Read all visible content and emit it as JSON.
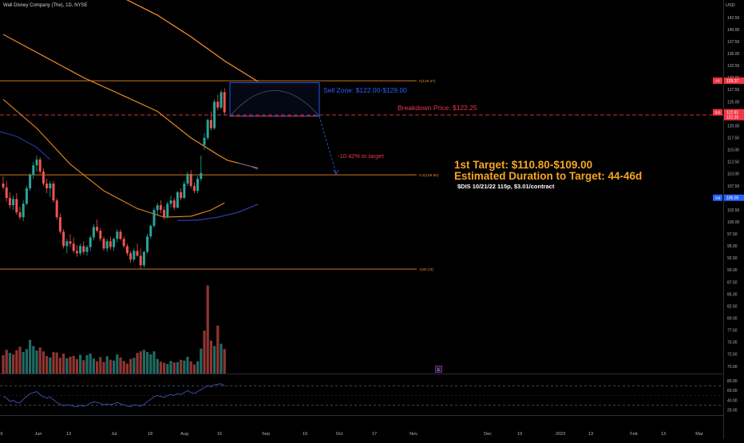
{
  "header": {
    "title": "Wall Disney Company (The), 1D, NYSE"
  },
  "colors": {
    "background": "#000000",
    "up": "#26a69a",
    "down": "#ef5350",
    "ma_orange": "#e8871e",
    "ma_blue": "#2a3aa8",
    "fib_line": "#e8871e",
    "breakdown_red": "#f23645",
    "sell_zone_blue": "#2962ff",
    "target_text": "#f5a623",
    "rsi_line": "#3e4c9c",
    "axis_text": "#b2b5be"
  },
  "price_axis": {
    "currency": "USD",
    "ticks": [
      "142.50",
      "140.00",
      "137.50",
      "135.00",
      "132.50",
      "130.00",
      "127.50",
      "125.00",
      "122.50",
      "120.00",
      "117.50",
      "115.00",
      "112.50",
      "110.00",
      "107.50",
      "105.00",
      "102.50",
      "100.00",
      "97.50",
      "95.00",
      "92.50",
      "90.00",
      "87.50",
      "85.00",
      "82.50",
      "80.00",
      "77.50",
      "75.00",
      "72.50",
      "70.00"
    ],
    "badges": [
      {
        "code": "AA",
        "value": "129.37",
        "color": "#f23645"
      },
      {
        "code": "DIS",
        "value": "122.81",
        "value2": "122.25",
        "color": "#f23645"
      },
      {
        "code": "Std",
        "value": "105.05",
        "color": "#2962ff"
      }
    ]
  },
  "rsi_axis": {
    "ticks": [
      "80.00",
      "60.00",
      "40.00",
      "20.00"
    ],
    "upper": 70,
    "lower": 30
  },
  "time_axis": {
    "labels": [
      "6",
      "Jun",
      "13",
      "Jul",
      "18",
      "Aug",
      "15",
      "Sep",
      "19",
      "Oct",
      "17",
      "Nov",
      "Dec",
      "19",
      "2023",
      "13",
      "Feb",
      "13",
      "Mar"
    ]
  },
  "annotations": {
    "fib_top": "0(129.37)",
    "fib_mid": "0.5(109.80)",
    "fib_bottom": "1(90.23)",
    "sell_zone": "Sell Zone: $122.00-$129.00",
    "breakdown": "Breakdown Price: $122.25",
    "pct_to_target": "-10.42% to target",
    "target": "1st Target: $110.80-$109.00",
    "duration": "Estimated Duration to Target: 44-46d",
    "contract": "$DIS 10/21/22 115p, $3.01/contract",
    "e_marker": "E"
  },
  "chart_data": {
    "type": "candlestick",
    "title": "Wall Disney Company (The), 1D, NYSE",
    "currency": "USD",
    "ylim": [
      68,
      144
    ],
    "fib_levels": [
      {
        "ratio": 0,
        "price": 129.37
      },
      {
        "ratio": 0.5,
        "price": 109.8
      },
      {
        "ratio": 1,
        "price": 90.23
      }
    ],
    "breakdown_price": 122.25,
    "sell_zone": [
      122.0,
      129.0
    ],
    "candles": [
      [
        108.0,
        109.5,
        106.8,
        107.2
      ],
      [
        107.2,
        108.5,
        104.2,
        105.0
      ],
      [
        105.0,
        106.2,
        102.8,
        103.5
      ],
      [
        103.5,
        105.5,
        102.5,
        104.8
      ],
      [
        104.8,
        106.0,
        101.5,
        102.0
      ],
      [
        102.0,
        103.2,
        100.5,
        101.0
      ],
      [
        101.0,
        104.5,
        100.2,
        103.8
      ],
      [
        103.8,
        107.5,
        103.5,
        107.0
      ],
      [
        107.0,
        110.2,
        106.5,
        109.8
      ],
      [
        109.8,
        112.5,
        109.0,
        111.8
      ],
      [
        111.8,
        113.8,
        110.5,
        113.0
      ],
      [
        113.0,
        113.5,
        110.0,
        110.5
      ],
      [
        110.5,
        111.2,
        107.5,
        108.0
      ],
      [
        108.0,
        109.0,
        106.0,
        107.0
      ],
      [
        107.0,
        108.5,
        105.2,
        108.0
      ],
      [
        108.0,
        108.5,
        104.0,
        104.5
      ],
      [
        104.5,
        105.0,
        100.5,
        101.0
      ],
      [
        101.0,
        101.8,
        97.5,
        98.0
      ],
      [
        98.0,
        98.5,
        94.5,
        95.0
      ],
      [
        95.0,
        96.5,
        93.5,
        96.0
      ],
      [
        96.0,
        97.5,
        94.8,
        95.5
      ],
      [
        95.5,
        96.8,
        93.5,
        94.0
      ],
      [
        94.0,
        95.2,
        92.8,
        93.5
      ],
      [
        93.5,
        95.5,
        93.0,
        95.0
      ],
      [
        95.0,
        96.0,
        93.2,
        93.8
      ],
      [
        93.8,
        95.2,
        93.0,
        94.8
      ],
      [
        94.8,
        97.2,
        94.0,
        96.8
      ],
      [
        96.8,
        99.5,
        96.2,
        99.0
      ],
      [
        99.0,
        100.5,
        97.8,
        98.2
      ],
      [
        98.2,
        98.8,
        96.0,
        96.5
      ],
      [
        96.5,
        97.0,
        94.0,
        94.5
      ],
      [
        94.5,
        96.5,
        93.8,
        96.0
      ],
      [
        96.0,
        97.0,
        94.2,
        94.8
      ],
      [
        94.8,
        96.8,
        94.0,
        96.5
      ],
      [
        96.5,
        98.5,
        95.8,
        98.0
      ],
      [
        98.0,
        98.5,
        96.2,
        96.5
      ],
      [
        96.5,
        97.0,
        94.5,
        95.0
      ],
      [
        95.0,
        95.5,
        93.0,
        93.5
      ],
      [
        93.5,
        94.0,
        91.5,
        92.2
      ],
      [
        92.2,
        94.5,
        91.8,
        94.0
      ],
      [
        94.0,
        95.5,
        92.8,
        93.0
      ],
      [
        93.0,
        94.5,
        90.2,
        91.0
      ],
      [
        91.0,
        94.0,
        90.5,
        93.8
      ],
      [
        93.8,
        97.5,
        93.5,
        97.0
      ],
      [
        97.0,
        99.5,
        96.5,
        99.2
      ],
      [
        99.2,
        103.0,
        98.8,
        102.5
      ],
      [
        102.5,
        104.0,
        101.5,
        103.5
      ],
      [
        103.5,
        104.5,
        101.8,
        102.5
      ],
      [
        102.5,
        103.2,
        100.5,
        101.0
      ],
      [
        101.0,
        104.2,
        100.8,
        103.8
      ],
      [
        103.8,
        105.5,
        103.0,
        104.5
      ],
      [
        104.5,
        105.0,
        102.5,
        103.0
      ],
      [
        103.0,
        106.5,
        102.8,
        106.2
      ],
      [
        106.2,
        107.0,
        104.5,
        105.0
      ],
      [
        105.0,
        108.5,
        104.8,
        108.0
      ],
      [
        108.0,
        110.5,
        107.5,
        110.0
      ],
      [
        110.0,
        110.8,
        107.0,
        107.5
      ],
      [
        107.5,
        108.2,
        106.0,
        106.5
      ],
      [
        106.5,
        109.5,
        106.0,
        109.0
      ],
      [
        109.0,
        113.8,
        108.5,
        110.2
      ],
      [
        116.0,
        118.5,
        115.0,
        117.5
      ],
      [
        117.5,
        121.5,
        117.0,
        121.2
      ],
      [
        121.2,
        123.0,
        119.0,
        119.5
      ],
      [
        119.5,
        125.5,
        119.2,
        125.0
      ],
      [
        125.0,
        126.5,
        123.2,
        123.8
      ],
      [
        123.8,
        127.5,
        123.5,
        127.0
      ],
      [
        127.0,
        127.8,
        122.2,
        122.8
      ]
    ],
    "volume": [
      {
        "v": 4.8,
        "up": false
      },
      {
        "v": 6.2,
        "up": false
      },
      {
        "v": 5.4,
        "up": true
      },
      {
        "v": 5.0,
        "up": false
      },
      {
        "v": 6.1,
        "up": false
      },
      {
        "v": 7.0,
        "up": false
      },
      {
        "v": 5.6,
        "up": true
      },
      {
        "v": 6.4,
        "up": true
      },
      {
        "v": 8.8,
        "up": true
      },
      {
        "v": 7.2,
        "up": true
      },
      {
        "v": 6.0,
        "up": true
      },
      {
        "v": 6.8,
        "up": false
      },
      {
        "v": 5.8,
        "up": false
      },
      {
        "v": 4.6,
        "up": false
      },
      {
        "v": 4.2,
        "up": true
      },
      {
        "v": 5.6,
        "up": false
      },
      {
        "v": 5.5,
        "up": false
      },
      {
        "v": 4.1,
        "up": false
      },
      {
        "v": 5.2,
        "up": false
      },
      {
        "v": 4.0,
        "up": true
      },
      {
        "v": 4.4,
        "up": false
      },
      {
        "v": 4.6,
        "up": false
      },
      {
        "v": 3.8,
        "up": false
      },
      {
        "v": 4.9,
        "up": true
      },
      {
        "v": 3.5,
        "up": false
      },
      {
        "v": 4.8,
        "up": true
      },
      {
        "v": 5.2,
        "up": true
      },
      {
        "v": 3.9,
        "up": true
      },
      {
        "v": 3.2,
        "up": false
      },
      {
        "v": 4.3,
        "up": false
      },
      {
        "v": 3.0,
        "up": false
      },
      {
        "v": 4.5,
        "up": true
      },
      {
        "v": 3.6,
        "up": false
      },
      {
        "v": 3.4,
        "up": true
      },
      {
        "v": 5.0,
        "up": true
      },
      {
        "v": 4.2,
        "up": false
      },
      {
        "v": 3.3,
        "up": false
      },
      {
        "v": 2.6,
        "up": false
      },
      {
        "v": 3.8,
        "up": false
      },
      {
        "v": 4.1,
        "up": true
      },
      {
        "v": 5.4,
        "up": false
      },
      {
        "v": 5.8,
        "up": false
      },
      {
        "v": 6.2,
        "up": true
      },
      {
        "v": 5.6,
        "up": true
      },
      {
        "v": 5.0,
        "up": true
      },
      {
        "v": 5.8,
        "up": true
      },
      {
        "v": 3.8,
        "up": true
      },
      {
        "v": 3.1,
        "up": false
      },
      {
        "v": 2.8,
        "up": false
      },
      {
        "v": 2.5,
        "up": true
      },
      {
        "v": 3.3,
        "up": true
      },
      {
        "v": 2.9,
        "up": false
      },
      {
        "v": 3.0,
        "up": true
      },
      {
        "v": 3.6,
        "up": false
      },
      {
        "v": 3.4,
        "up": true
      },
      {
        "v": 4.4,
        "up": true
      },
      {
        "v": 3.2,
        "up": false
      },
      {
        "v": 2.4,
        "up": false
      },
      {
        "v": 3.2,
        "up": true
      },
      {
        "v": 6.5,
        "up": true
      },
      {
        "v": 11.2,
        "up": false
      },
      {
        "v": 23.0,
        "up": false
      },
      {
        "v": 8.6,
        "up": false
      },
      {
        "v": 7.2,
        "up": true
      },
      {
        "v": 12.5,
        "up": false
      },
      {
        "v": 7.8,
        "up": true
      },
      {
        "v": 6.4,
        "up": false
      }
    ],
    "vol_max": 25,
    "ma_orange_long": [
      [
        0,
        139.0
      ],
      [
        12,
        134.5
      ],
      [
        24,
        130.0
      ],
      [
        36,
        126.2
      ],
      [
        46,
        123.0
      ],
      [
        56,
        117.5
      ],
      [
        64,
        114.0
      ],
      [
        67,
        112.8
      ],
      [
        76,
        111.2
      ]
    ],
    "ma_orange_200": [
      [
        0,
        160.0
      ],
      [
        12,
        156.0
      ],
      [
        24,
        151.0
      ],
      [
        36,
        146.5
      ],
      [
        46,
        143.0
      ],
      [
        56,
        138.5
      ],
      [
        66,
        133.5
      ],
      [
        76,
        129.2
      ]
    ],
    "ma_orange_short": [
      [
        0,
        125.5
      ],
      [
        10,
        119.5
      ],
      [
        20,
        112.0
      ],
      [
        30,
        106.5
      ],
      [
        40,
        102.8
      ],
      [
        48,
        101.0
      ],
      [
        56,
        101.2
      ],
      [
        62,
        102.5
      ],
      [
        66,
        104.0
      ]
    ],
    "ma_blue_arc": [
      [
        -2,
        119.0
      ],
      [
        4,
        117.8
      ],
      [
        10,
        115.5
      ],
      [
        14,
        113.0
      ]
    ],
    "ma_blue_low": [
      [
        52,
        100.3
      ],
      [
        58,
        100.4
      ],
      [
        64,
        101.0
      ],
      [
        70,
        102.0
      ],
      [
        76,
        103.7
      ]
    ],
    "ma_blue_top": [
      [
        70,
        112.2
      ],
      [
        74,
        111.5
      ],
      [
        76,
        110.9
      ]
    ],
    "rsi": [
      48,
      45,
      38,
      40,
      36,
      35,
      42,
      48,
      54,
      56,
      58,
      52,
      47,
      45,
      47,
      41,
      36,
      32,
      29,
      31,
      30,
      28,
      27,
      30,
      28,
      30,
      34,
      37,
      36,
      34,
      31,
      33,
      31,
      33,
      36,
      33,
      31,
      29,
      27,
      31,
      30,
      28,
      32,
      38,
      42,
      48,
      50,
      48,
      46,
      50,
      52,
      50,
      54,
      52,
      56,
      60,
      56,
      54,
      58,
      62,
      66,
      70,
      68,
      72,
      73,
      74,
      70
    ],
    "rsi_ylim": [
      10,
      90
    ],
    "rsi_bands": [
      70,
      30
    ]
  }
}
